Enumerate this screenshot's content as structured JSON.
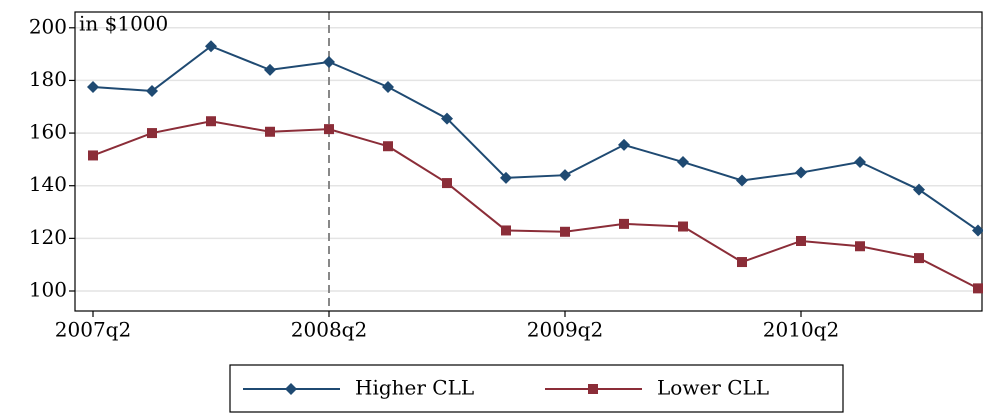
{
  "chart_data": {
    "type": "line",
    "annotation": "in $1000",
    "categories": [
      "2007q2",
      null,
      null,
      null,
      "2008q2",
      null,
      null,
      null,
      "2009q2",
      null,
      null,
      null,
      "2010q2",
      null,
      null,
      null
    ],
    "series": [
      {
        "name": "Higher CLL",
        "color": "#1f4a72",
        "marker": "diamond",
        "values": [
          177.5,
          176,
          193,
          184,
          187,
          177.5,
          165.5,
          143,
          144,
          155.5,
          149,
          142,
          145,
          149,
          138.5,
          123
        ]
      },
      {
        "name": "Lower CLL",
        "color": "#8b2d38",
        "marker": "square",
        "values": [
          151.5,
          160,
          164.5,
          160.5,
          161.5,
          155,
          141,
          123,
          122.5,
          125.5,
          124.5,
          111,
          119,
          117,
          112.5,
          101
        ]
      }
    ],
    "ylim": [
      92.4,
      206
    ],
    "yticks": [
      100,
      120,
      140,
      160,
      180,
      200
    ],
    "grid": true,
    "vline": "2008q2",
    "legend": "bottom"
  }
}
